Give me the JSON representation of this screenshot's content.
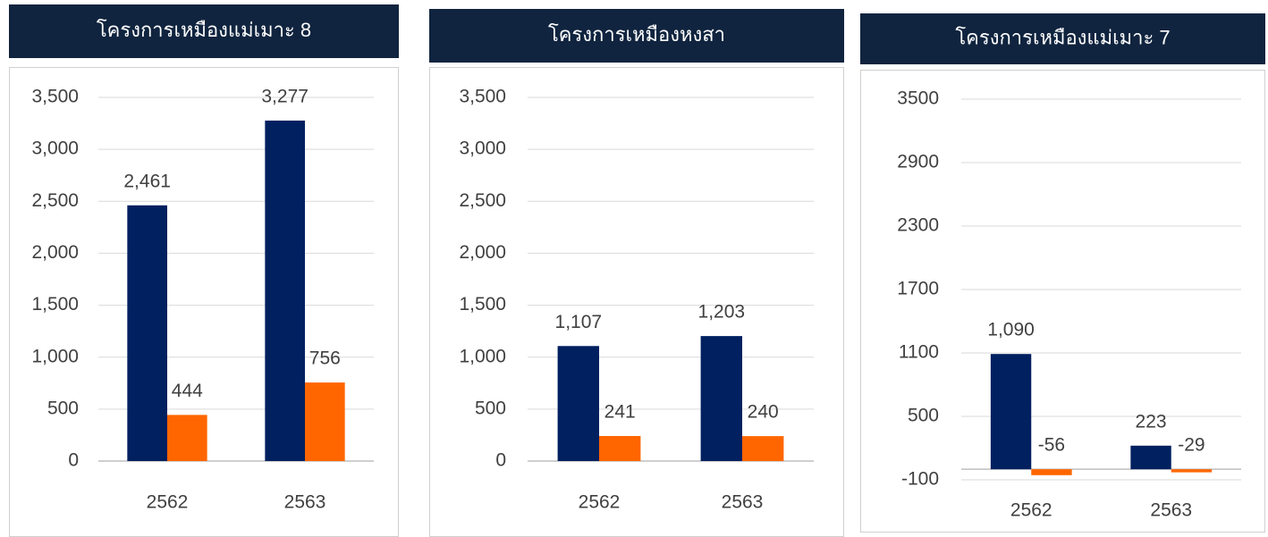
{
  "chart_data": [
    {
      "type": "bar",
      "title": "โครงการเหมืองแม่เมาะ 8",
      "categories": [
        "2562",
        "2563"
      ],
      "series": [
        {
          "color": "#002060",
          "values": [
            2461,
            3277
          ],
          "value_labels": [
            "2,461",
            "3,277"
          ]
        },
        {
          "color": "#ff6600",
          "values": [
            444,
            756
          ]
        }
      ],
      "ylim": [
        0,
        3500
      ],
      "yticks": [
        0,
        500,
        {
          "value": 1000,
          "label": "1,000"
        },
        {
          "value": 1500,
          "label": "1,500"
        },
        {
          "value": 2000,
          "label": "2,000"
        },
        {
          "value": 2500,
          "label": "2,500"
        },
        {
          "value": 3000,
          "label": "3,000"
        },
        {
          "value": 3500,
          "label": "3,500"
        }
      ],
      "grid": true
    },
    {
      "type": "bar",
      "title": "โครงการเหมืองหงสา",
      "categories": [
        "2562",
        "2563"
      ],
      "series": [
        {
          "color": "#002060",
          "values": [
            1107,
            1203
          ],
          "value_labels": [
            "1,107",
            "1,203"
          ]
        },
        {
          "color": "#ff6600",
          "values": [
            241,
            240
          ]
        }
      ],
      "ylim": [
        0,
        3500
      ],
      "yticks": [
        0,
        500,
        {
          "value": 1000,
          "label": "1,000"
        },
        {
          "value": 1500,
          "label": "1,500"
        },
        {
          "value": 2000,
          "label": "2,000"
        },
        {
          "value": 2500,
          "label": "2,500"
        },
        {
          "value": 3000,
          "label": "3,000"
        },
        {
          "value": 3500,
          "label": "3,500"
        }
      ],
      "grid": true
    },
    {
      "type": "bar",
      "title": "โครงการเหมืองแม่เมาะ 7",
      "categories": [
        "2562",
        "2563"
      ],
      "series": [
        {
          "color": "#002060",
          "values": [
            1090,
            223
          ],
          "value_labels": [
            "1,090",
            "223"
          ]
        },
        {
          "color": "#ff6600",
          "values": [
            -56,
            -29
          ]
        }
      ],
      "ylim": [
        -100,
        3500
      ],
      "yticks": [
        -100,
        500,
        1100,
        1700,
        2300,
        2900,
        3500
      ],
      "grid": true
    }
  ]
}
